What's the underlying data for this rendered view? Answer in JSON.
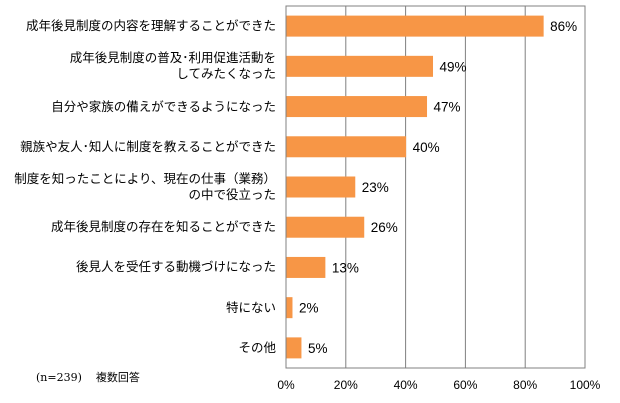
{
  "chart_data": {
    "type": "bar",
    "orientation": "horizontal",
    "categories": [
      "成年後見制度の内容を理解することができた",
      "成年後見制度の普及･利用促進活動を\nしてみたくなった",
      "自分や家族の備えができるようになった",
      "親族や友人･知人に制度を教えることができた",
      "制度を知ったことにより、現在の仕事（業務）\nの中で役立った",
      "成年後見制度の存在を知ることができた",
      "後見人を受任する動機づけになった",
      "特にない",
      "その他"
    ],
    "values": [
      86,
      49,
      47,
      40,
      23,
      26,
      13,
      2,
      5
    ],
    "value_labels": [
      "86%",
      "49%",
      "47%",
      "40%",
      "23%",
      "26%",
      "13%",
      "2%",
      "5%"
    ],
    "xlim": [
      0,
      100
    ],
    "x_ticks": [
      "0%",
      "20%",
      "40%",
      "60%",
      "80%",
      "100%"
    ],
    "grid": true,
    "bar_color": "#f79646",
    "note_n": "(n=239)",
    "note_text": "複数回答"
  }
}
